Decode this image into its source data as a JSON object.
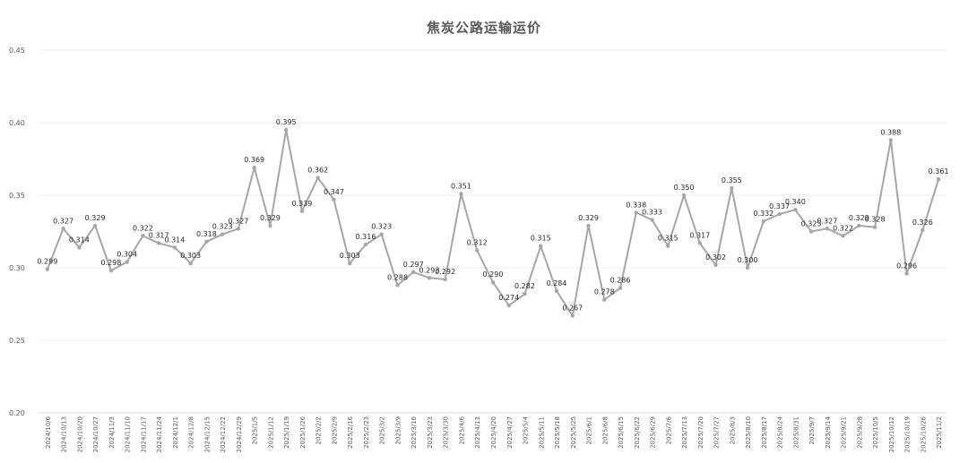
{
  "chart_data": {
    "type": "line",
    "title": "焦炭公路运输运价",
    "xlabel": "",
    "ylabel": "",
    "ylim": [
      0.2,
      0.45
    ],
    "yticks": [
      "0.20",
      "0.25",
      "0.30",
      "0.35",
      "0.40",
      "0.45"
    ],
    "grid": true,
    "legend": "none",
    "line_color": "#a6a6a6",
    "categories": [
      "2024/10/6",
      "2024/10/13",
      "2024/10/20",
      "2024/10/27",
      "2024/11/3",
      "2024/11/10",
      "2024/11/17",
      "2024/11/24",
      "2024/12/1",
      "2024/12/8",
      "2024/12/15",
      "2024/12/22",
      "2024/12/29",
      "2025/1/5",
      "2025/1/12",
      "2025/1/19",
      "2025/1/26",
      "2025/2/2",
      "2025/2/9",
      "2025/2/16",
      "2025/2/23",
      "2025/3/2",
      "2025/3/9",
      "2025/3/16",
      "2025/3/23",
      "2025/3/30",
      "2025/4/6",
      "2025/4/13",
      "2025/4/20",
      "2025/4/27",
      "2025/5/4",
      "2025/5/11",
      "2025/5/18",
      "2025/5/25",
      "2025/6/1",
      "2025/6/8",
      "2025/6/15",
      "2025/6/22",
      "2025/6/29",
      "2025/7/6",
      "2025/7/13",
      "2025/7/20",
      "2025/7/27",
      "2025/8/3",
      "2025/8/10",
      "2025/8/17",
      "2025/8/24",
      "2025/8/31",
      "2025/9/7",
      "2025/9/14",
      "2025/9/21",
      "2025/9/28",
      "2025/10/5",
      "2025/10/12",
      "2025/10/19",
      "2025/10/26",
      "2025/11/2"
    ],
    "values": [
      0.299,
      0.327,
      0.314,
      0.329,
      0.298,
      0.304,
      0.322,
      0.317,
      0.314,
      0.303,
      0.318,
      0.323,
      0.327,
      0.369,
      0.329,
      0.395,
      0.339,
      0.362,
      0.347,
      0.303,
      0.316,
      0.323,
      0.288,
      0.297,
      0.293,
      0.292,
      0.351,
      0.312,
      0.29,
      0.274,
      0.282,
      0.315,
      0.284,
      0.267,
      0.329,
      0.278,
      0.286,
      0.338,
      0.333,
      0.315,
      0.35,
      0.317,
      0.302,
      0.355,
      0.3,
      0.332,
      0.337,
      0.34,
      0.325,
      0.327,
      0.322,
      0.329,
      0.328,
      0.388,
      0.296,
      0.326,
      0.361
    ]
  }
}
